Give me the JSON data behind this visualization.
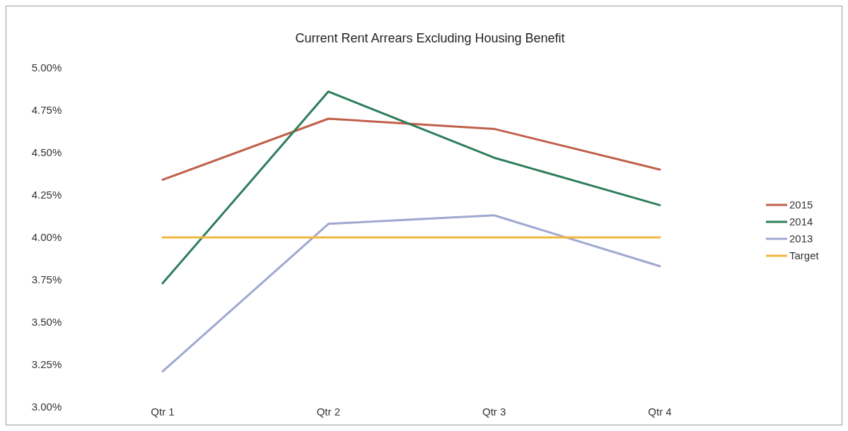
{
  "chart_data": {
    "type": "line",
    "title": "Current Rent Arrears Excluding Housing Benefit",
    "categories": [
      "Qtr 1",
      "Qtr 2",
      "Qtr 3",
      "Qtr 4"
    ],
    "series": [
      {
        "name": "2015",
        "color": "#c0604a",
        "values": [
          4.34,
          4.7,
          4.64,
          4.4
        ]
      },
      {
        "name": "2014",
        "color": "#2e7d5b",
        "values": [
          3.73,
          4.86,
          4.47,
          4.19
        ]
      },
      {
        "name": "2013",
        "color": "#9fa8d0",
        "values": [
          3.21,
          4.08,
          4.13,
          3.83
        ]
      },
      {
        "name": "Target",
        "color": "#f0b740",
        "values": [
          4.0,
          4.0,
          4.0,
          4.0
        ]
      }
    ],
    "ylim": [
      3,
      5
    ],
    "yticks": [
      {
        "value": 3,
        "label": "3.00%"
      },
      {
        "value": 3.25,
        "label": "3.25%"
      },
      {
        "value": 3.5,
        "label": "3.50%"
      },
      {
        "value": 3.75,
        "label": "3.75%"
      },
      {
        "value": 4,
        "label": "4.00%"
      },
      {
        "value": 4.25,
        "label": "4.25%"
      },
      {
        "value": 4.5,
        "label": "4.50%"
      },
      {
        "value": 4.75,
        "label": "4.75%"
      },
      {
        "value": 5,
        "label": "5.00%"
      }
    ],
    "legend": "right",
    "marker": "none",
    "line_style": "solid"
  }
}
